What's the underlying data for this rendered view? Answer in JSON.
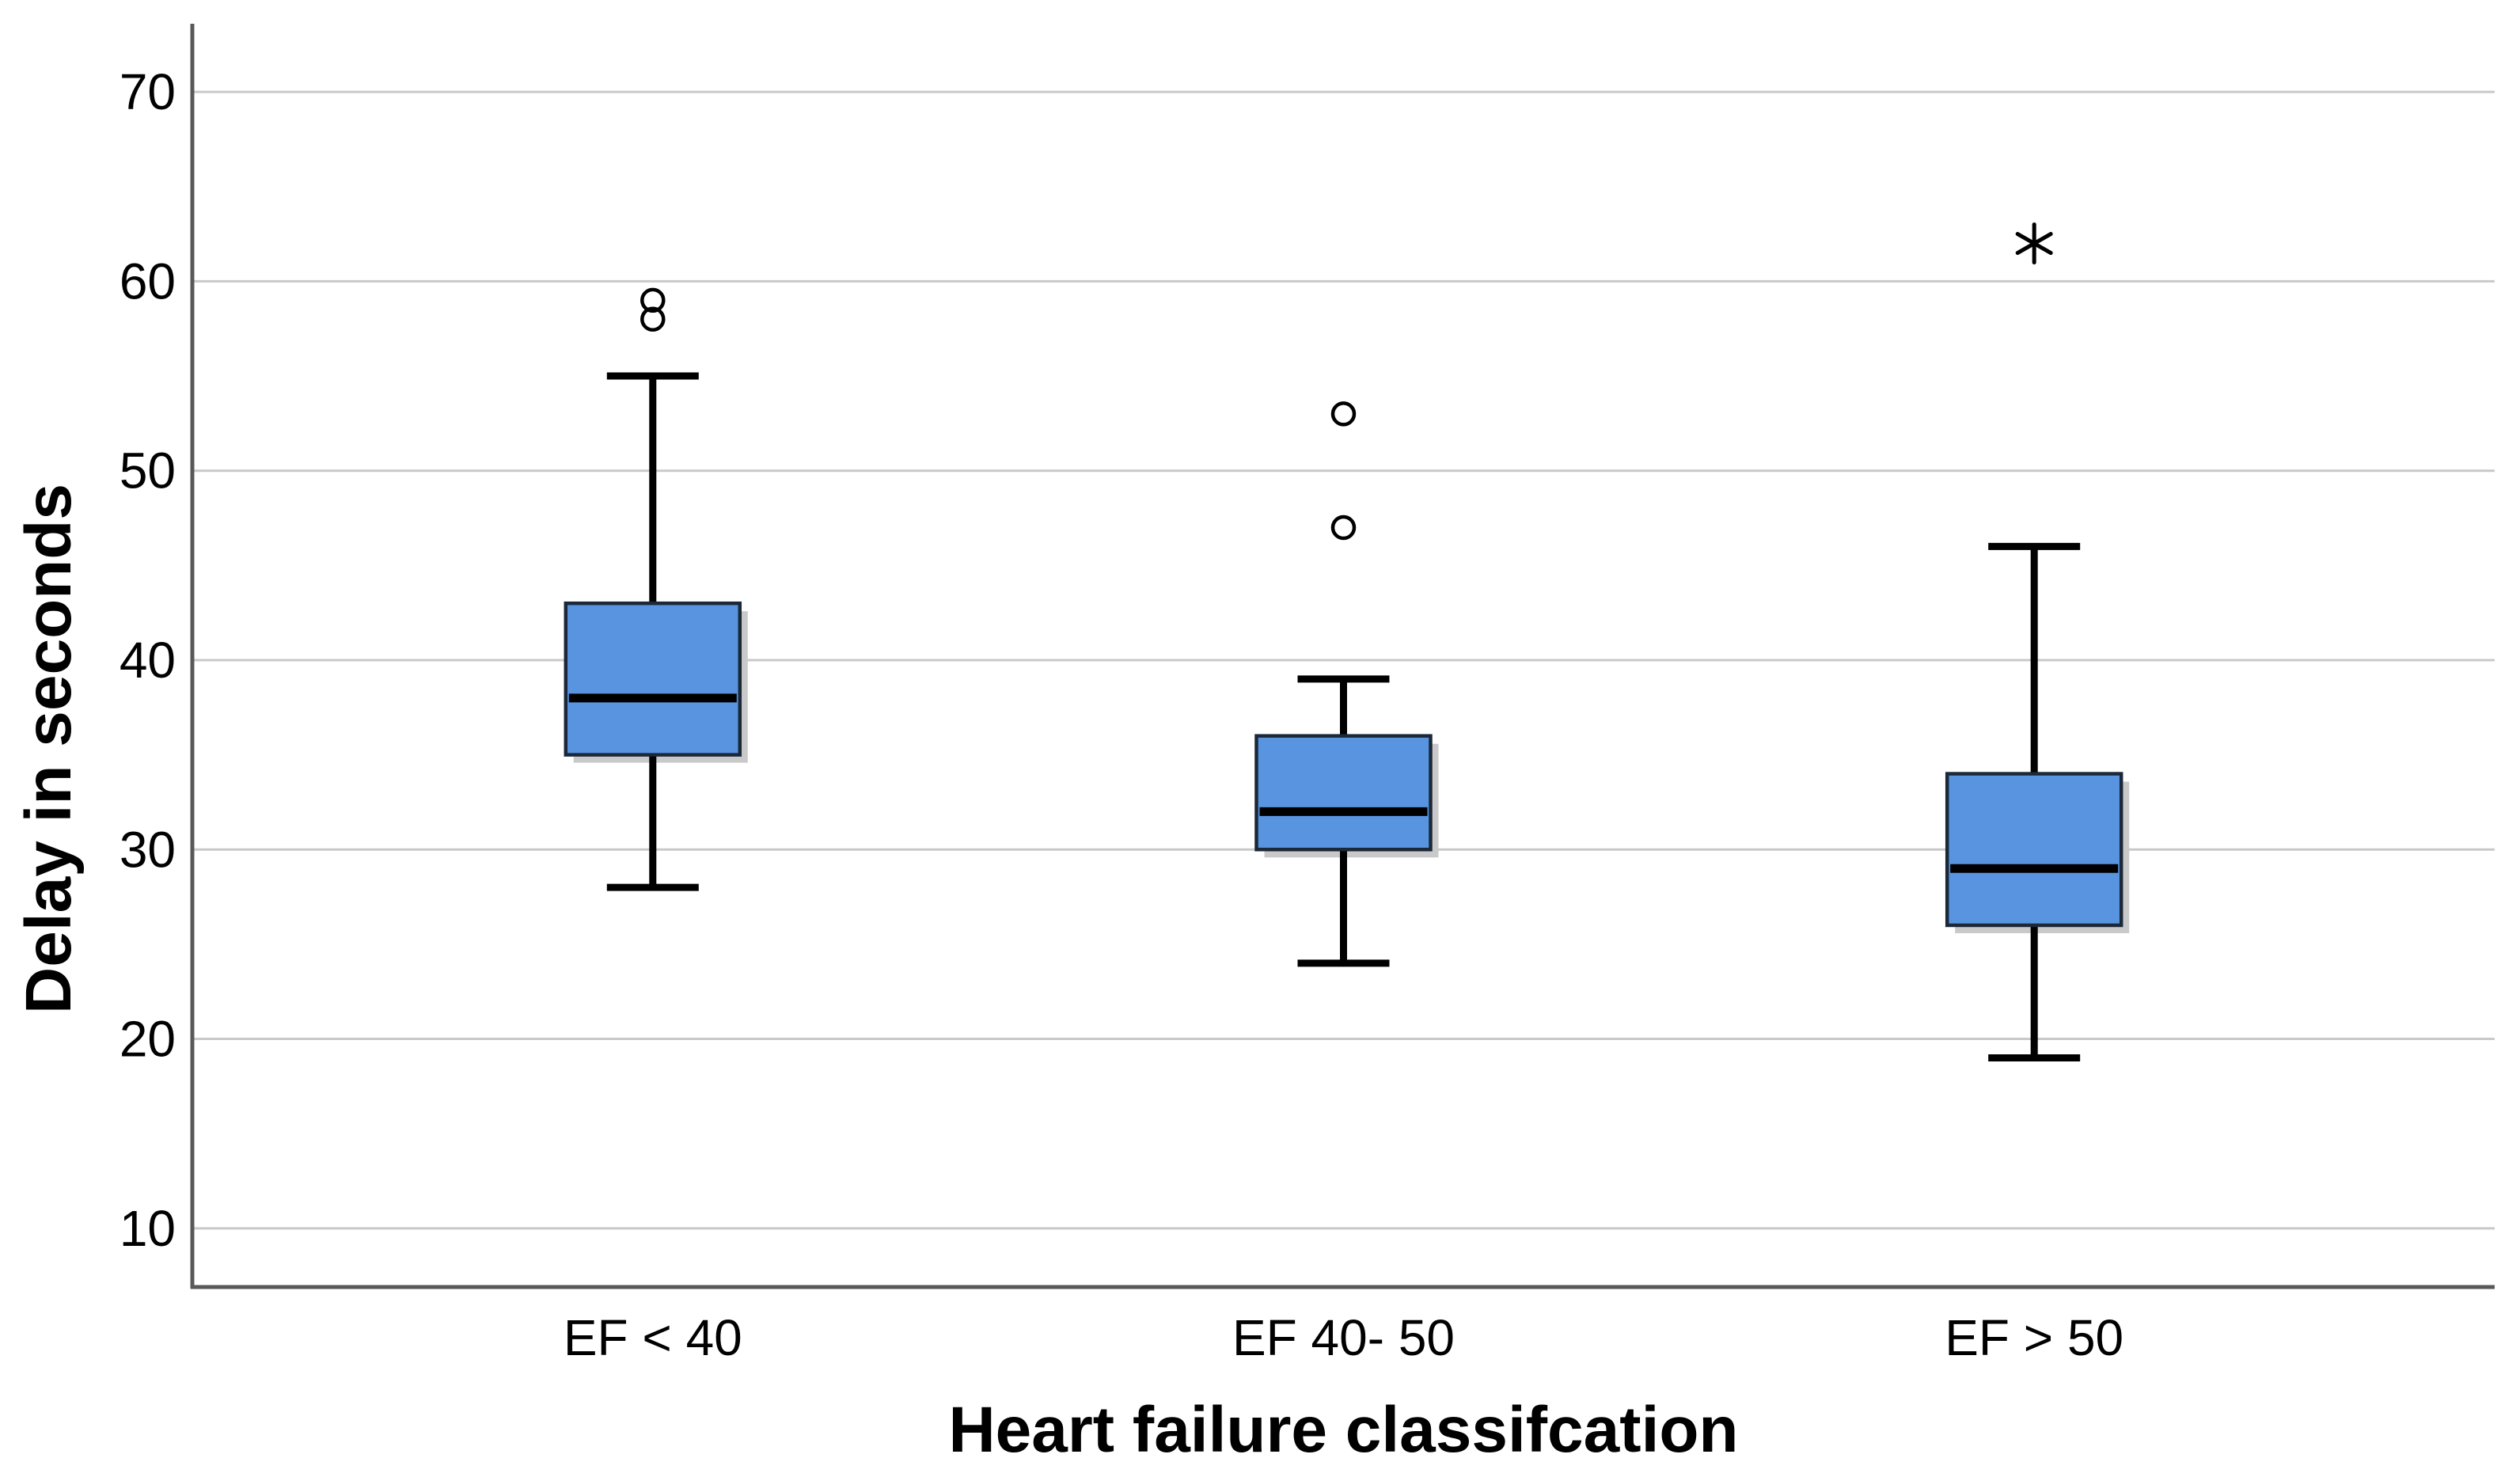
{
  "chart_data": {
    "type": "boxplot",
    "title": "",
    "xlabel": "Heart failure classifcation",
    "ylabel": "Delay in seconds",
    "categories": [
      "EF < 40",
      "EF 40- 50",
      "EF > 50"
    ],
    "yticks": [
      10,
      20,
      30,
      40,
      50,
      60,
      70
    ],
    "ylim": [
      6.9,
      73.6
    ],
    "grid": true,
    "legend_position": "none",
    "series": [
      {
        "category": "EF < 40",
        "whisker_low": 28,
        "q1": 35,
        "median": 38,
        "q3": 43,
        "whisker_high": 55,
        "outliers": [
          58,
          59
        ],
        "extreme_outliers": []
      },
      {
        "category": "EF 40- 50",
        "whisker_low": 24,
        "q1": 30,
        "median": 32,
        "q3": 36,
        "whisker_high": 39,
        "outliers": [
          47,
          53
        ],
        "extreme_outliers": []
      },
      {
        "category": "EF > 50",
        "whisker_low": 19,
        "q1": 26,
        "median": 29,
        "q3": 34,
        "whisker_high": 46,
        "outliers": [],
        "extreme_outliers": [
          62
        ]
      }
    ],
    "colors": {
      "box_fill": "#5994e1",
      "box_border": "#1b2838",
      "median": "#000000",
      "whisker": "#000000",
      "outlier": "#000000",
      "gridline": "#c9c9c9",
      "axis": "#58585a",
      "shadow": "#c9c9c9",
      "text": "#000000"
    }
  }
}
